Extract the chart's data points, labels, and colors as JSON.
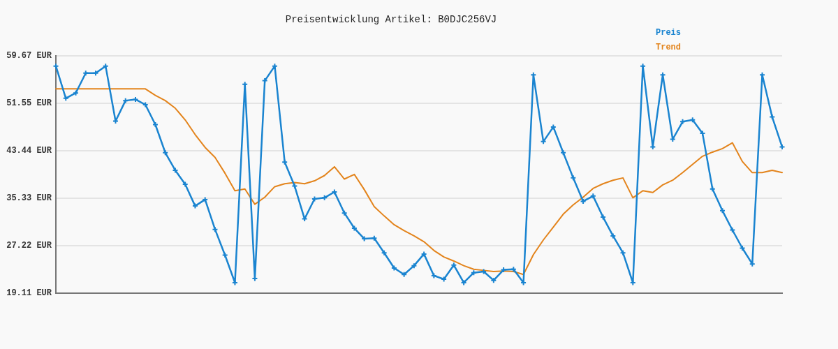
{
  "chart_data": {
    "type": "line",
    "title": "Preisentwicklung Artikel: B0DJC256VJ",
    "categories": [
      null,
      null,
      null,
      null,
      null,
      null,
      null,
      null,
      null,
      null,
      null,
      null,
      null,
      null,
      null,
      null,
      null,
      null,
      null,
      null,
      null,
      null,
      null,
      null,
      null,
      null,
      null,
      null,
      null,
      null,
      null,
      null,
      null,
      null,
      null,
      null,
      null,
      null,
      null,
      null,
      null,
      null,
      null,
      null,
      null,
      null,
      null,
      null,
      null,
      null,
      null,
      null,
      null,
      null,
      null,
      null,
      null,
      null,
      null,
      null,
      null,
      null,
      null,
      null,
      null,
      null,
      null,
      null,
      null,
      null,
      null,
      null,
      null,
      null
    ],
    "series": [
      {
        "name": "Preis",
        "color": "#1a84d0",
        "marker": "cross",
        "values": [
          57.9,
          52.4,
          53.3,
          56.7,
          56.7,
          57.9,
          48.5,
          52.0,
          52.2,
          51.3,
          47.9,
          43.1,
          40.1,
          37.7,
          34.0,
          35.1,
          30.0,
          25.6,
          20.9,
          54.8,
          21.6,
          55.4,
          57.9,
          41.5,
          37.4,
          31.8,
          35.2,
          35.4,
          36.4,
          32.8,
          30.2,
          28.4,
          28.5,
          26.0,
          23.4,
          22.3,
          23.8,
          25.8,
          22.1,
          21.5,
          23.9,
          20.9,
          22.6,
          22.8,
          21.3,
          23.1,
          23.2,
          20.9,
          56.4,
          45.0,
          47.5,
          43.1,
          38.8,
          34.8,
          35.7,
          32.1,
          28.9,
          26.0,
          20.9,
          57.9,
          44.1,
          56.4,
          45.4,
          48.4,
          48.7,
          46.4,
          36.9,
          33.2,
          29.9,
          26.8,
          24.1,
          56.4,
          49.2,
          44.1
        ]
      },
      {
        "name": "Trend",
        "color": "#e3841c",
        "marker": "none",
        "values": [
          54.0,
          54.0,
          54.0,
          54.0,
          54.0,
          54.0,
          54.0,
          54.0,
          54.0,
          54.0,
          52.9,
          52.0,
          50.7,
          48.7,
          46.2,
          44.0,
          42.3,
          39.6,
          36.6,
          36.9,
          34.3,
          35.5,
          37.3,
          37.8,
          38.0,
          37.8,
          38.3,
          39.2,
          40.7,
          38.6,
          39.4,
          36.8,
          33.9,
          32.3,
          30.8,
          29.8,
          28.9,
          27.9,
          26.4,
          25.3,
          24.6,
          23.8,
          23.2,
          23.0,
          22.8,
          22.9,
          22.8,
          22.3,
          25.7,
          28.2,
          30.4,
          32.6,
          34.2,
          35.5,
          37.0,
          37.8,
          38.4,
          38.8,
          35.4,
          36.6,
          36.3,
          37.6,
          38.4,
          39.7,
          41.1,
          42.5,
          43.2,
          43.8,
          44.8,
          41.6,
          39.7,
          39.7,
          40.1,
          39.7
        ]
      }
    ],
    "ylim": [
      19.11,
      59.67
    ],
    "yticks": [
      {
        "value": 19.11,
        "label": "19.11 EUR"
      },
      {
        "value": 27.22,
        "label": "27.22 EUR"
      },
      {
        "value": 35.33,
        "label": "35.33 EUR"
      },
      {
        "value": 43.44,
        "label": "43.44 EUR"
      },
      {
        "value": 51.55,
        "label": "51.55 EUR"
      },
      {
        "value": 59.67,
        "label": "59.67 EUR"
      }
    ],
    "grid": "y",
    "legend": "top right",
    "tick_labels": "y",
    "line_style": "solid"
  }
}
